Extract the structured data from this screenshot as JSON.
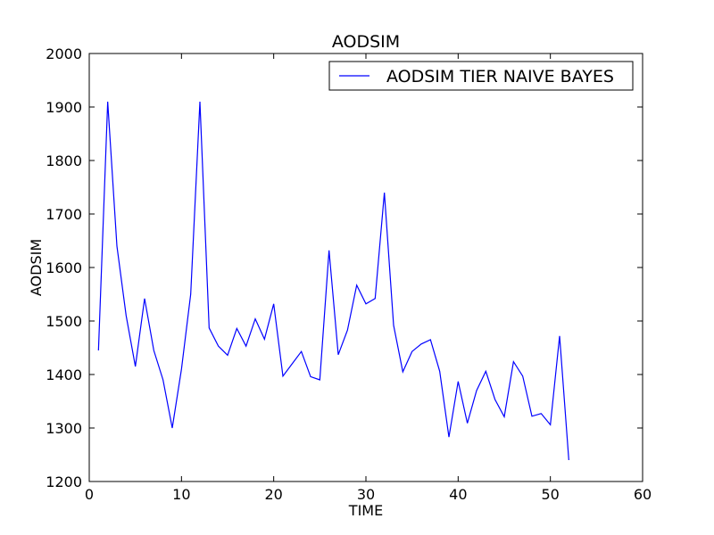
{
  "chart_data": {
    "type": "line",
    "title": "AODSIM",
    "xlabel": "TIME",
    "ylabel": "AODSIM",
    "xlim": [
      0,
      60
    ],
    "ylim": [
      1200,
      2000
    ],
    "xticks": [
      "0",
      "10",
      "20",
      "30",
      "40",
      "50",
      "60"
    ],
    "yticks": [
      "1200",
      "1300",
      "1400",
      "1500",
      "1600",
      "1700",
      "1800",
      "1900",
      "2000"
    ],
    "grid": false,
    "legend_position": "top-right",
    "series": [
      {
        "name": "AODSIM TIER NAIVE BAYES",
        "color": "#0000ff",
        "x": [
          1,
          2,
          3,
          4,
          5,
          6,
          7,
          8,
          9,
          10,
          11,
          12,
          13,
          14,
          15,
          16,
          17,
          18,
          19,
          20,
          21,
          22,
          23,
          24,
          25,
          26,
          27,
          28,
          29,
          30,
          31,
          32,
          33,
          34,
          35,
          36,
          37,
          38,
          39,
          40,
          41,
          42,
          43,
          44,
          45,
          46,
          47,
          48,
          49,
          50,
          51,
          52
        ],
        "y": [
          1445,
          1910,
          1640,
          1510,
          1415,
          1542,
          1445,
          1390,
          1300,
          1410,
          1550,
          1910,
          1487,
          1453,
          1436,
          1486,
          1453,
          1504,
          1466,
          1532,
          1397,
          1420,
          1443,
          1396,
          1390,
          1632,
          1437,
          1483,
          1567,
          1532,
          1542,
          1740,
          1492,
          1405,
          1443,
          1457,
          1465,
          1406,
          1283,
          1387,
          1309,
          1370,
          1406,
          1353,
          1321,
          1424,
          1397,
          1322,
          1327,
          1306,
          1472,
          1240
        ]
      }
    ]
  }
}
